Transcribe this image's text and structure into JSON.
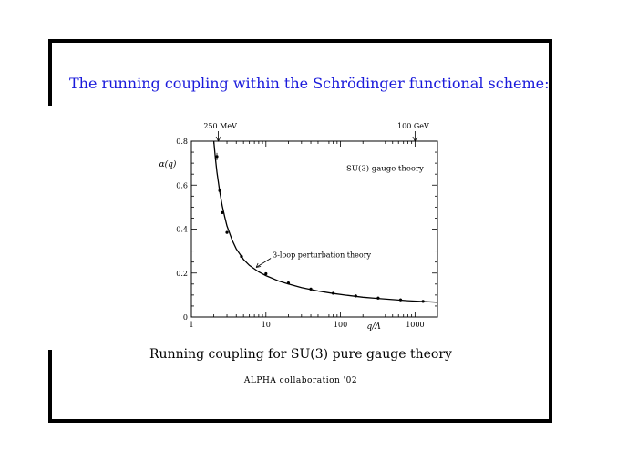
{
  "slide": {
    "title": "The running coupling within the Schrödinger functional scheme:",
    "caption": "Running coupling for SU(3) pure gauge theory",
    "credit": "ALPHA collaboration '02",
    "title_color": "#1a1adb"
  },
  "chart_data": {
    "type": "scatter",
    "ylabel": "α(q)",
    "xlabel": "q/Λ",
    "x_scale": "log",
    "xlim": [
      1,
      2000
    ],
    "ylim": [
      0,
      0.8
    ],
    "x_ticks": [
      1,
      10,
      100,
      1000
    ],
    "x_tick_labels": [
      "1",
      "10",
      "100",
      "1000"
    ],
    "y_ticks": [
      0,
      0.2,
      0.4,
      0.6,
      0.8
    ],
    "y_tick_labels": [
      "0",
      "0.2",
      "0.4",
      "0.6",
      "0.8"
    ],
    "grid": false,
    "legend": "none",
    "points": [
      {
        "x": 2.2,
        "y": 0.73
      },
      {
        "x": 2.4,
        "y": 0.575
      },
      {
        "x": 2.6,
        "y": 0.475
      },
      {
        "x": 3.0,
        "y": 0.385
      },
      {
        "x": 4.7,
        "y": 0.275
      },
      {
        "x": 10,
        "y": 0.197
      },
      {
        "x": 20,
        "y": 0.155
      },
      {
        "x": 40,
        "y": 0.127
      },
      {
        "x": 80,
        "y": 0.108
      },
      {
        "x": 160,
        "y": 0.096
      },
      {
        "x": 320,
        "y": 0.086
      },
      {
        "x": 640,
        "y": 0.078
      },
      {
        "x": 1280,
        "y": 0.071
      }
    ],
    "curve": {
      "x": [
        2.0,
        2.1,
        2.2,
        2.4,
        2.6,
        2.8,
        3.0,
        3.5,
        4.0,
        5.0,
        6.0,
        8.0,
        10,
        15,
        20,
        30,
        50,
        80,
        120,
        200,
        300,
        500,
        800,
        1200,
        2000
      ],
      "y": [
        0.8,
        0.72,
        0.66,
        0.57,
        0.505,
        0.455,
        0.415,
        0.352,
        0.31,
        0.262,
        0.235,
        0.205,
        0.188,
        0.163,
        0.15,
        0.134,
        0.118,
        0.107,
        0.099,
        0.09,
        0.085,
        0.079,
        0.074,
        0.071,
        0.067
      ]
    },
    "annotations": {
      "top_left": {
        "label": "250 MeV",
        "x": 2.3
      },
      "top_right": {
        "label": "100 GeV",
        "x": 1000
      },
      "model": "SU(3) gauge theory",
      "curve_label": {
        "label": "3-loop perturbation theory",
        "x": 7.0,
        "y": 0.23
      }
    }
  }
}
